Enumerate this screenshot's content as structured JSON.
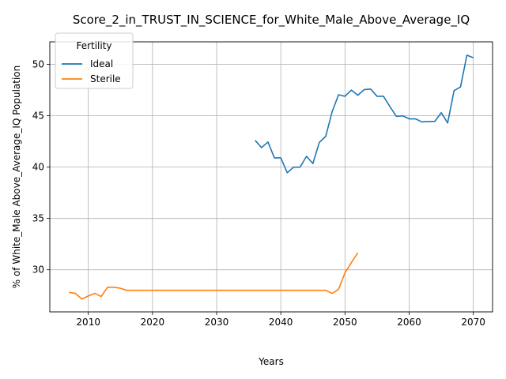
{
  "chart_data": {
    "type": "line",
    "title": "Score_2_in_TRUST_IN_SCIENCE_for_White_Male_Above_Average_IQ",
    "xlabel": "Years",
    "ylabel": "% of White_Male Above_Average_IQ Population",
    "xlim": [
      2004,
      2073
    ],
    "ylim": [
      25.9,
      52.2
    ],
    "xticks": [
      2010,
      2020,
      2030,
      2040,
      2050,
      2060,
      2070
    ],
    "yticks": [
      30,
      35,
      40,
      45,
      50
    ],
    "grid": true,
    "legend": {
      "title": "Fertility",
      "placement": "top-left"
    },
    "series": [
      {
        "name": "Ideal",
        "color": "#1f77b4",
        "x": [
          2036,
          2037,
          2038,
          2039,
          2040,
          2041,
          2042,
          2043,
          2044,
          2045,
          2046,
          2047,
          2048,
          2049,
          2050,
          2051,
          2052,
          2053,
          2054,
          2055,
          2056,
          2057,
          2058,
          2059,
          2060,
          2061,
          2062,
          2063,
          2064,
          2065,
          2066,
          2067,
          2068,
          2069,
          2070
        ],
        "y": [
          42.6,
          41.9,
          42.45,
          40.9,
          40.9,
          39.45,
          40.0,
          40.0,
          41.05,
          40.35,
          42.4,
          43.0,
          45.4,
          47.05,
          46.9,
          47.5,
          47.0,
          47.55,
          47.6,
          46.9,
          46.9,
          45.9,
          44.95,
          45.0,
          44.7,
          44.7,
          44.4,
          44.45,
          44.45,
          45.3,
          44.3,
          47.45,
          47.8,
          50.9,
          50.65
        ]
      },
      {
        "name": "Sterile",
        "color": "#ff7f0e",
        "x": [
          2007,
          2008,
          2009,
          2010,
          2011,
          2012,
          2013,
          2014,
          2015,
          2016,
          2017,
          2018,
          2019,
          2020,
          2025,
          2030,
          2035,
          2040,
          2045,
          2046,
          2047,
          2048,
          2049,
          2050,
          2051,
          2052
        ],
        "y": [
          27.8,
          27.7,
          27.15,
          27.45,
          27.7,
          27.4,
          28.3,
          28.3,
          28.2,
          28.0,
          28.0,
          28.0,
          28.0,
          28.0,
          28.0,
          28.0,
          28.0,
          28.0,
          28.0,
          28.0,
          28.0,
          27.7,
          28.1,
          29.7,
          30.7,
          31.65
        ]
      }
    ]
  }
}
